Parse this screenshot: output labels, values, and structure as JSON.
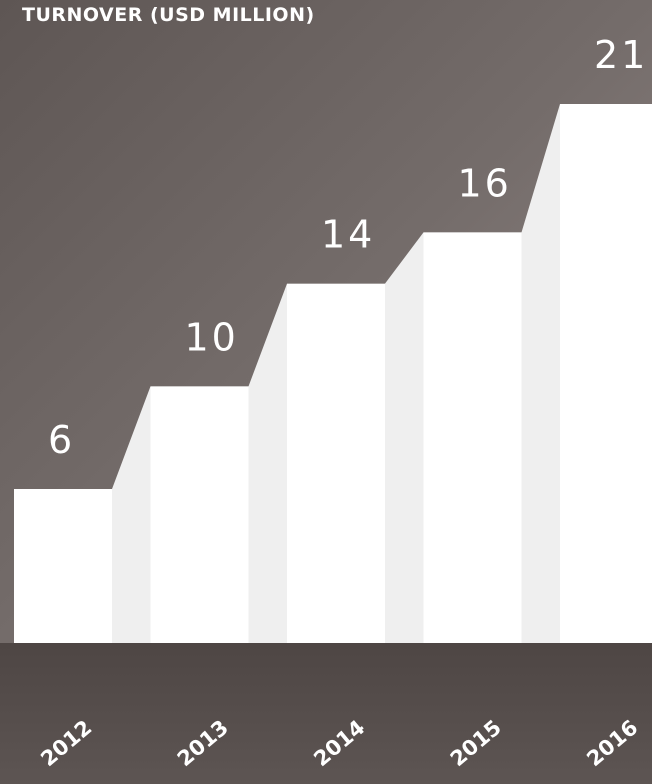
{
  "chart_data": {
    "type": "bar",
    "title": "TURNOVER (USD MILLION)",
    "categories": [
      "2012",
      "2013",
      "2014",
      "2015",
      "2016"
    ],
    "values": [
      6,
      10,
      14,
      16,
      21
    ],
    "value_labels": [
      "6",
      "10",
      "14",
      "16",
      "21"
    ],
    "ylim": [
      0,
      21
    ],
    "grid": false,
    "legend": "none",
    "colors": {
      "bar": "#ffffff",
      "connector": "#efefef",
      "text": "#ffffff"
    }
  }
}
